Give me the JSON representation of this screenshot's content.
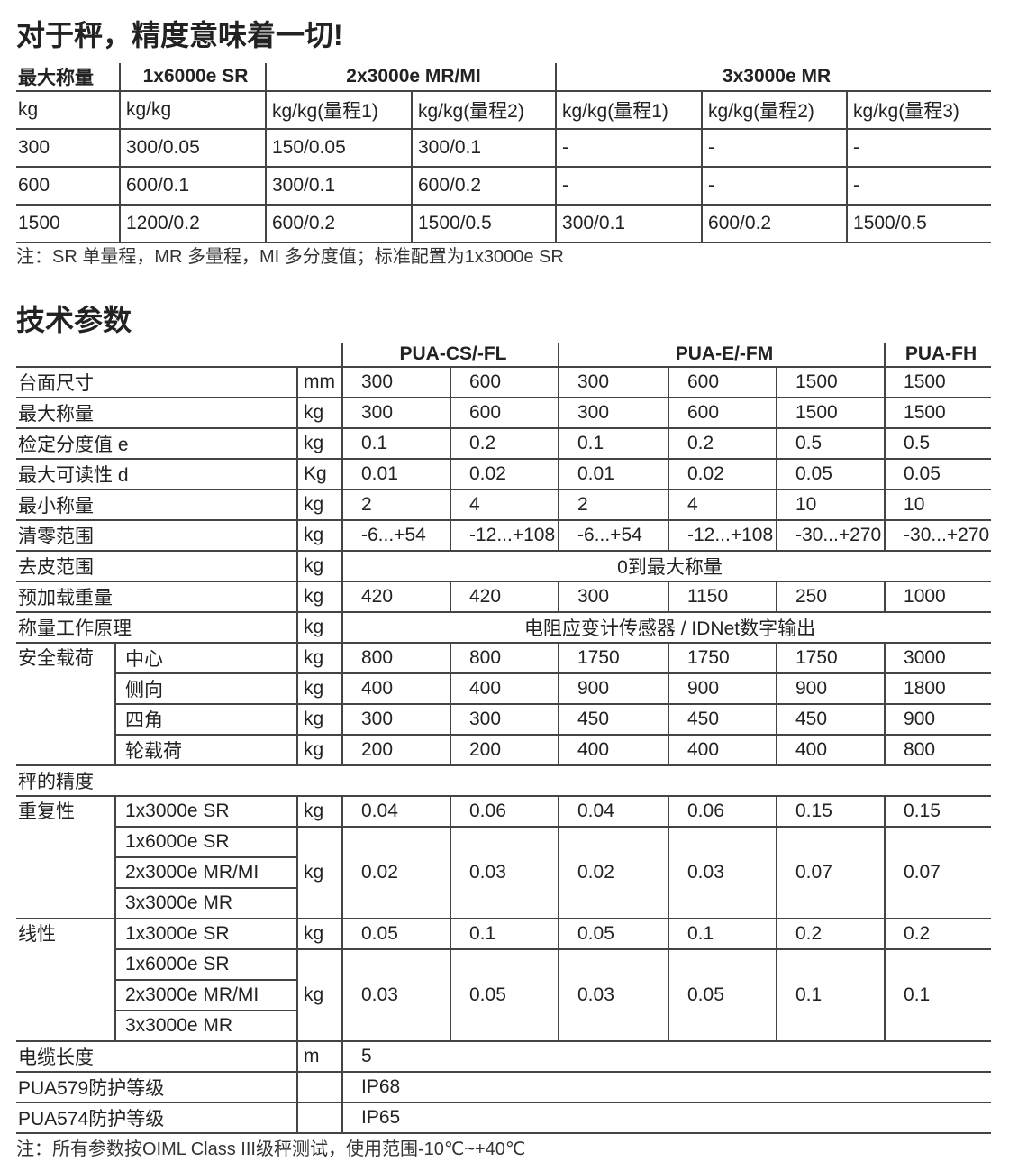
{
  "top": {
    "title": "对于秤，精度意味着一切!",
    "headers": [
      "最大称量",
      "1x6000e SR",
      "2x3000e MR/MI",
      "3x3000e MR"
    ],
    "units": [
      "kg",
      "kg/kg",
      "kg/kg(量程1)",
      "kg/kg(量程2)",
      "kg/kg(量程1)",
      "kg/kg(量程2)",
      "kg/kg(量程3)"
    ],
    "rows": [
      [
        "300",
        "300/0.05",
        "150/0.05",
        "300/0.1",
        "-",
        "-",
        "-"
      ],
      [
        "600",
        "600/0.1",
        "300/0.1",
        "600/0.2",
        "-",
        "-",
        "-"
      ],
      [
        "1500",
        "1200/0.2",
        "600/0.2",
        "1500/0.5",
        "300/0.1",
        "600/0.2",
        "1500/0.5"
      ]
    ],
    "note": "注：SR 单量程，MR 多量程，MI 多分度值；标准配置为1x3000e SR"
  },
  "spec": {
    "title": "技术参数",
    "groups": [
      "PUA-CS/-FL",
      "PUA-E/-FM",
      "PUA-FH"
    ],
    "rows": [
      {
        "label": "台面尺寸",
        "unit": "mm",
        "values": [
          "300",
          "600",
          "300",
          "600",
          "1500",
          "1500"
        ]
      },
      {
        "label": "最大称量",
        "unit": "kg",
        "values": [
          "300",
          "600",
          "300",
          "600",
          "1500",
          "1500"
        ]
      },
      {
        "label": "检定分度值 e",
        "unit": "kg",
        "values": [
          "0.1",
          "0.2",
          "0.1",
          "0.2",
          "0.5",
          "0.5"
        ]
      },
      {
        "label": "最大可读性 d",
        "unit": "Kg",
        "values": [
          "0.01",
          "0.02",
          "0.01",
          "0.02",
          "0.05",
          "0.05"
        ]
      },
      {
        "label": "最小称量",
        "unit": "kg",
        "values": [
          "2",
          "4",
          "2",
          "4",
          "10",
          "10"
        ]
      },
      {
        "label": "清零范围",
        "unit": "kg",
        "values": [
          "-6...+54",
          "-12...+108",
          "-6...+54",
          "-12...+108",
          "-30...+270",
          "-30...+270"
        ]
      },
      {
        "label": "去皮范围",
        "unit": "kg",
        "merged": "0到最大称量"
      },
      {
        "label": "预加载重量",
        "unit": "kg",
        "values": [
          "420",
          "420",
          "300",
          "1150",
          "250",
          "1000"
        ]
      },
      {
        "label": "称量工作原理",
        "unit": "kg",
        "merged": "电阻应变计传感器 / IDNet数字输出"
      }
    ],
    "safety": {
      "label": "安全载荷",
      "items": [
        {
          "sub": "中心",
          "unit": "kg",
          "values": [
            "800",
            "800",
            "1750",
            "1750",
            "1750",
            "3000"
          ]
        },
        {
          "sub": "侧向",
          "unit": "kg",
          "values": [
            "400",
            "400",
            "900",
            "900",
            "900",
            "1800"
          ]
        },
        {
          "sub": "四角",
          "unit": "kg",
          "values": [
            "300",
            "300",
            "450",
            "450",
            "450",
            "900"
          ]
        },
        {
          "sub": "轮载荷",
          "unit": "kg",
          "values": [
            "200",
            "200",
            "400",
            "400",
            "400",
            "800"
          ]
        }
      ]
    },
    "accuracy_heading": "秤的精度",
    "accuracy": [
      {
        "label": "重复性",
        "first": {
          "sub": "1x3000e SR",
          "unit": "kg",
          "values": [
            "0.04",
            "0.06",
            "0.04",
            "0.06",
            "0.15",
            "0.15"
          ]
        },
        "rest": {
          "subs": [
            "1x6000e SR",
            "2x3000e MR/MI",
            "3x3000e MR"
          ],
          "unit": "kg",
          "values": [
            "0.02",
            "0.03",
            "0.02",
            "0.03",
            "0.07",
            "0.07"
          ]
        }
      },
      {
        "label": "线性",
        "first": {
          "sub": "1x3000e SR",
          "unit": "kg",
          "values": [
            "0.05",
            "0.1",
            "0.05",
            "0.1",
            "0.2",
            "0.2"
          ]
        },
        "rest": {
          "subs": [
            "1x6000e SR",
            "2x3000e MR/MI",
            "3x3000e MR"
          ],
          "unit": "kg",
          "values": [
            "0.03",
            "0.05",
            "0.03",
            "0.05",
            "0.1",
            "0.1"
          ]
        }
      }
    ],
    "tail": [
      {
        "label": "电缆长度",
        "unit": "m",
        "value": "5"
      },
      {
        "label": "PUA579防护等级",
        "unit": "",
        "value": "IP68"
      },
      {
        "label": "PUA574防护等级",
        "unit": "",
        "value": "IP65"
      }
    ],
    "note": "注：所有参数按OIML Class III级秤测试，使用范围-10℃~+40℃"
  }
}
